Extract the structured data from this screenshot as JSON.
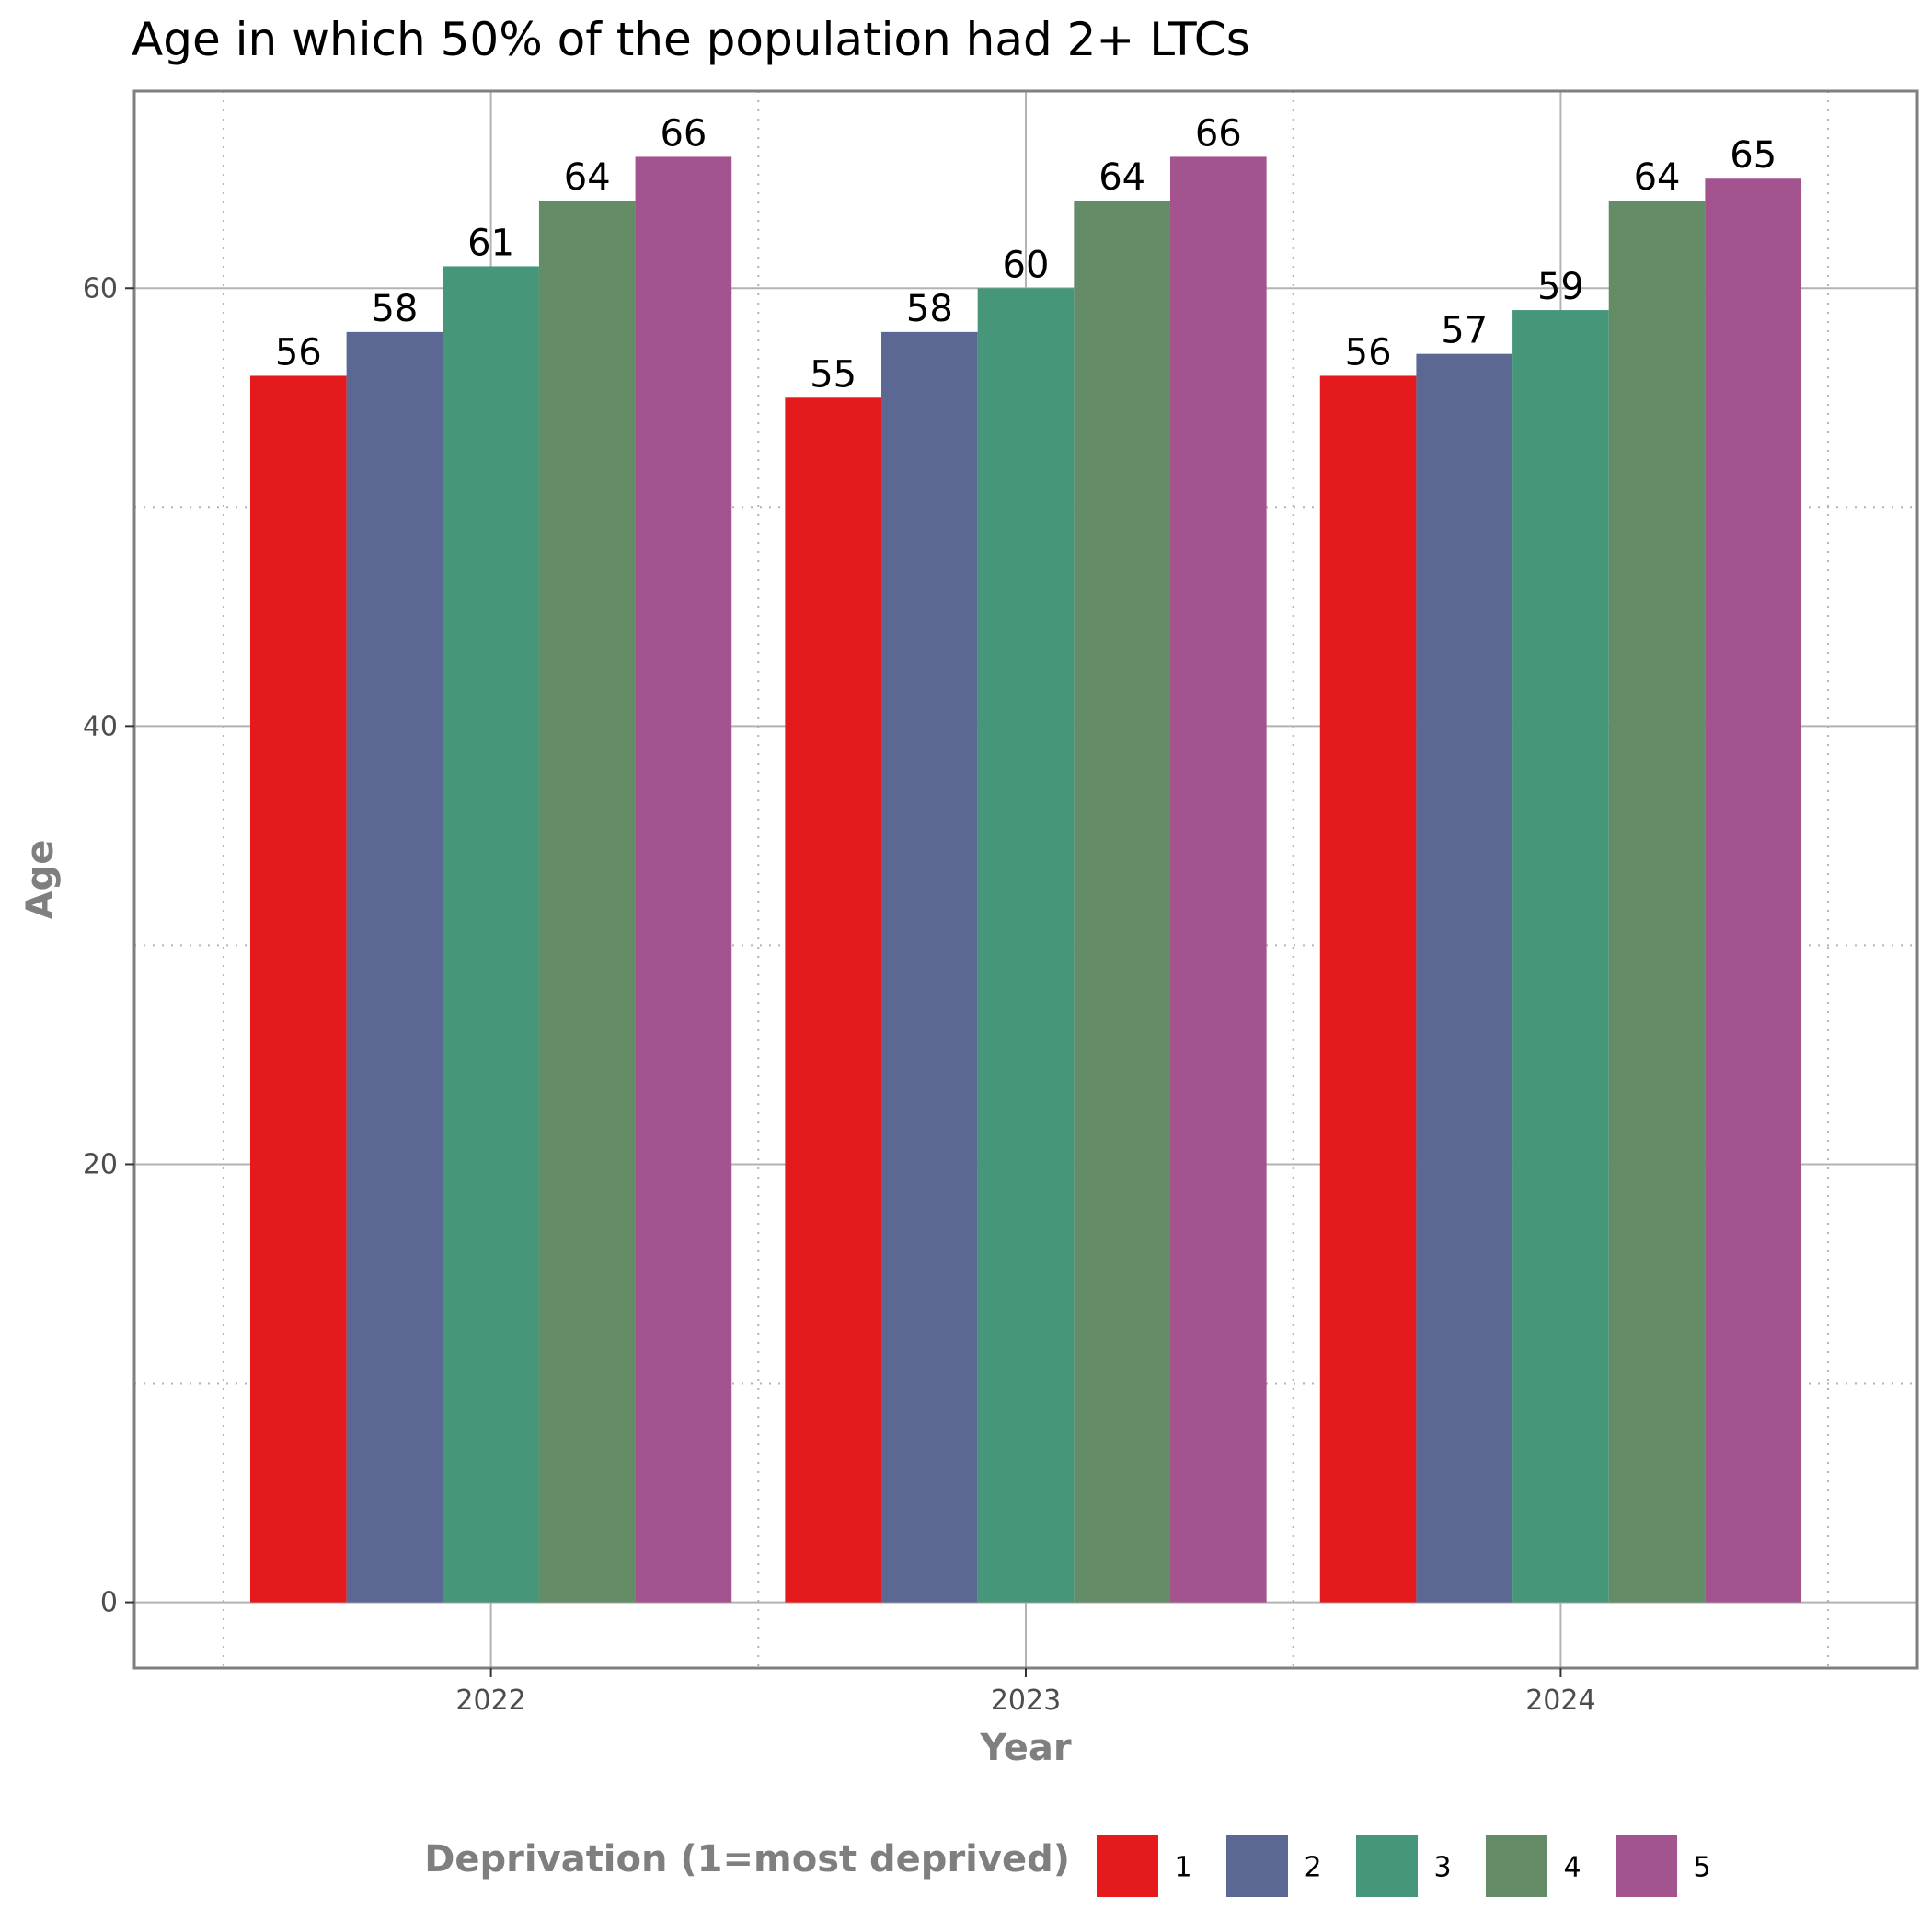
{
  "chart_data": {
    "type": "bar",
    "title": "Age in which 50% of the population had 2+ LTCs",
    "xlabel": "Year",
    "ylabel": "Age",
    "categories": [
      "2022",
      "2023",
      "2024"
    ],
    "ylim": [
      -3,
      69
    ],
    "yticks": [
      0,
      20,
      40,
      60
    ],
    "grid": true,
    "legend": {
      "title": "Deprivation (1=most deprived)",
      "placement": "bottom"
    },
    "series": [
      {
        "name": "1",
        "color": "#e41a1c",
        "values": [
          56,
          55,
          56
        ]
      },
      {
        "name": "2",
        "color": "#5c6894",
        "values": [
          58,
          58,
          57
        ]
      },
      {
        "name": "3",
        "color": "#46977a",
        "values": [
          61,
          60,
          59
        ]
      },
      {
        "name": "4",
        "color": "#648d67",
        "values": [
          64,
          64,
          64
        ]
      },
      {
        "name": "5",
        "color": "#a3548e",
        "values": [
          66,
          66,
          65
        ]
      }
    ]
  }
}
